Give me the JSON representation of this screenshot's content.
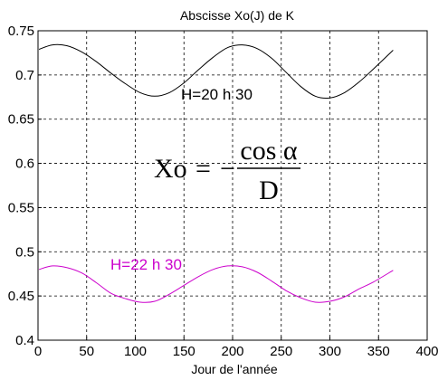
{
  "chart_data": {
    "type": "line",
    "title": "Abscisse Xo(J) de K",
    "xlabel": "Jour de l'année",
    "ylabel": "",
    "xlim": [
      0,
      400
    ],
    "ylim": [
      0.4,
      0.75
    ],
    "xticks": [
      "0",
      "50",
      "100",
      "150",
      "200",
      "250",
      "300",
      "350",
      "400"
    ],
    "yticks": [
      "0.4",
      "0.45",
      "0.5",
      "0.55",
      "0.6",
      "0.65",
      "0.7",
      "0.75"
    ],
    "grid": true,
    "x": [
      1,
      15,
      30,
      45,
      60,
      75,
      90,
      105,
      120,
      135,
      150,
      165,
      180,
      195,
      210,
      225,
      240,
      255,
      270,
      285,
      300,
      315,
      330,
      345,
      365
    ],
    "series": [
      {
        "name": "H=20 h 30",
        "color": "#000000",
        "values": [
          0.729,
          0.734,
          0.733,
          0.726,
          0.715,
          0.702,
          0.69,
          0.68,
          0.676,
          0.68,
          0.691,
          0.706,
          0.72,
          0.731,
          0.734,
          0.73,
          0.719,
          0.703,
          0.687,
          0.676,
          0.674,
          0.68,
          0.692,
          0.707,
          0.728
        ]
      },
      {
        "name": "H=22 h 30",
        "color": "#cc00cc",
        "values": [
          0.48,
          0.484,
          0.482,
          0.476,
          0.465,
          0.453,
          0.447,
          0.443,
          0.444,
          0.452,
          0.462,
          0.472,
          0.48,
          0.484,
          0.483,
          0.477,
          0.467,
          0.456,
          0.448,
          0.443,
          0.444,
          0.449,
          0.458,
          0.466,
          0.479
        ]
      }
    ],
    "annotations": {
      "formula_lhs": "Xo",
      "formula_eq": "=",
      "formula_minus": "−",
      "formula_num": "cos α",
      "formula_den": "D"
    }
  }
}
